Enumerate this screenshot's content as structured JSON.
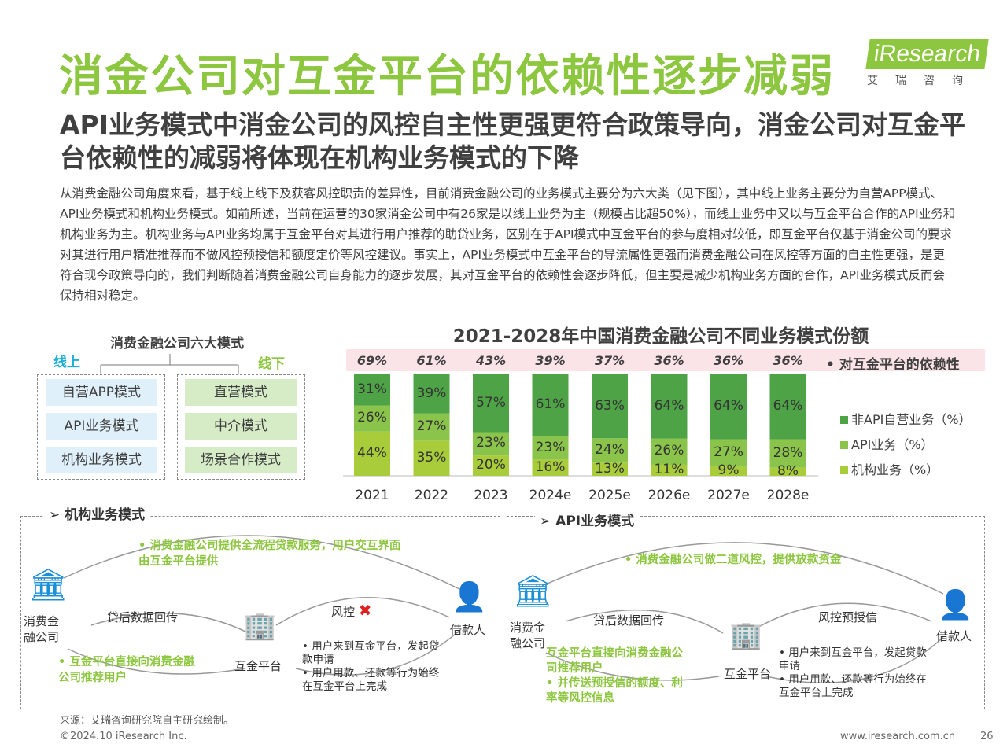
{
  "header": {
    "title": "消金公司对互金平台的依赖性逐步减弱",
    "logo": "iResearch",
    "logo_sub": "艾瑞咨询"
  },
  "subtitle": "API业务模式中消金公司的风控自主性更强更符合政策导向，消金公司对互金平台依赖性的减弱将体现在机构业务模式的下降",
  "body": "从消费金融公司角度来看，基于线上线下及获客风控职责的差异性，目前消费金融公司的业务模式主要分为六大类（见下图），其中线上业务主要分为自营APP模式、API业务模式和机构业务模式。如前所述，当前在运营的30家消金公司中有26家是以线上业务为主（规模占比超50%），而线上业务中又以与互金平台合作的API业务和机构业务为主。机构业务与API业务均属于互金平台对其进行用户推荐的助贷业务，区别在于API模式中互金平台的参与度相对较低，即互金平台仅基于消金公司的要求对其进行用户精准推荐而不做风控预授信和额度定价等风控建议。事实上，API业务模式中互金平台的导流属性更强而消费金融公司在风控等方面的自主性更强，是更符合现今政策导向的，我们判断随着消费金融公司自身能力的逐步发展，其对互金平台的依赖性会逐步降低，但主要是减少机构业务方面的合作，API业务模式反而会保持相对稳定。",
  "modes": {
    "title": "消费金融公司六大模式",
    "online_label": "线上",
    "offline_label": "线下",
    "online": [
      "自营APP模式",
      "API业务模式",
      "机构业务模式"
    ],
    "offline": [
      "直营模式",
      "中介模式",
      "场景合作模式"
    ]
  },
  "chart_data": {
    "type": "bar",
    "title": "2021-2028年中国消费金融公司不同业务模式份额",
    "categories": [
      "2021",
      "2022",
      "2023",
      "2024e",
      "2025e",
      "2026e",
      "2027e",
      "2028e"
    ],
    "series": [
      {
        "name": "机构业务（%）",
        "values": [
          44,
          35,
          20,
          16,
          13,
          11,
          9,
          8
        ]
      },
      {
        "name": "API业务（%）",
        "values": [
          26,
          27,
          23,
          23,
          24,
          26,
          27,
          28
        ]
      },
      {
        "name": "非API自营业务（%）",
        "values": [
          31,
          39,
          57,
          61,
          63,
          64,
          64,
          64
        ]
      }
    ],
    "dependency_label": "对互金平台的依赖性",
    "dependency": [
      "69%",
      "61%",
      "43%",
      "39%",
      "37%",
      "36%",
      "36%",
      "36%"
    ],
    "ylim": [
      0,
      100
    ],
    "stacked": true,
    "legend_position": "right",
    "colors": {
      "institution": "#a8cc3a",
      "api": "#8ac44a",
      "non_api": "#4ea346"
    }
  },
  "institution_diagram": {
    "title": "机构业务模式",
    "note_top": "消费金融公司提供全流程贷款服务，用户交互界面由互金平台提供",
    "company": "消费金融公司",
    "data_return": "贷后数据回传",
    "platform": "互金平台",
    "risk": "风控",
    "borrower": "借款人",
    "note_left": "互金平台直接向消费金融公司推荐用户",
    "note_right_1": "用户来到互金平台，发起贷款申请",
    "note_right_2": "用户用款、还款等行为始终在互金平台上完成"
  },
  "api_diagram": {
    "title": "API业务模式",
    "note_top": "消费金融公司做二道风控，提供放款资金",
    "company": "消费金融公司",
    "data_return": "贷后数据回传",
    "platform": "互金平台",
    "risk": "风控预授信",
    "borrower": "借款人",
    "note_left_1": "互金平台直接向消费金融公司推荐用户",
    "note_left_2": "并传送预授信的额度、利率等风控信息",
    "note_right_1": "用户来到互金平台，发起贷款申请",
    "note_right_2": "用户用款、还款等行为始终在互金平台上完成"
  },
  "footer": {
    "source": "来源：艾瑞咨询研究院自主研究绘制。",
    "copyright": "©2024.10 iResearch Inc.",
    "url": "www.iresearch.com.cn",
    "page": "26"
  }
}
